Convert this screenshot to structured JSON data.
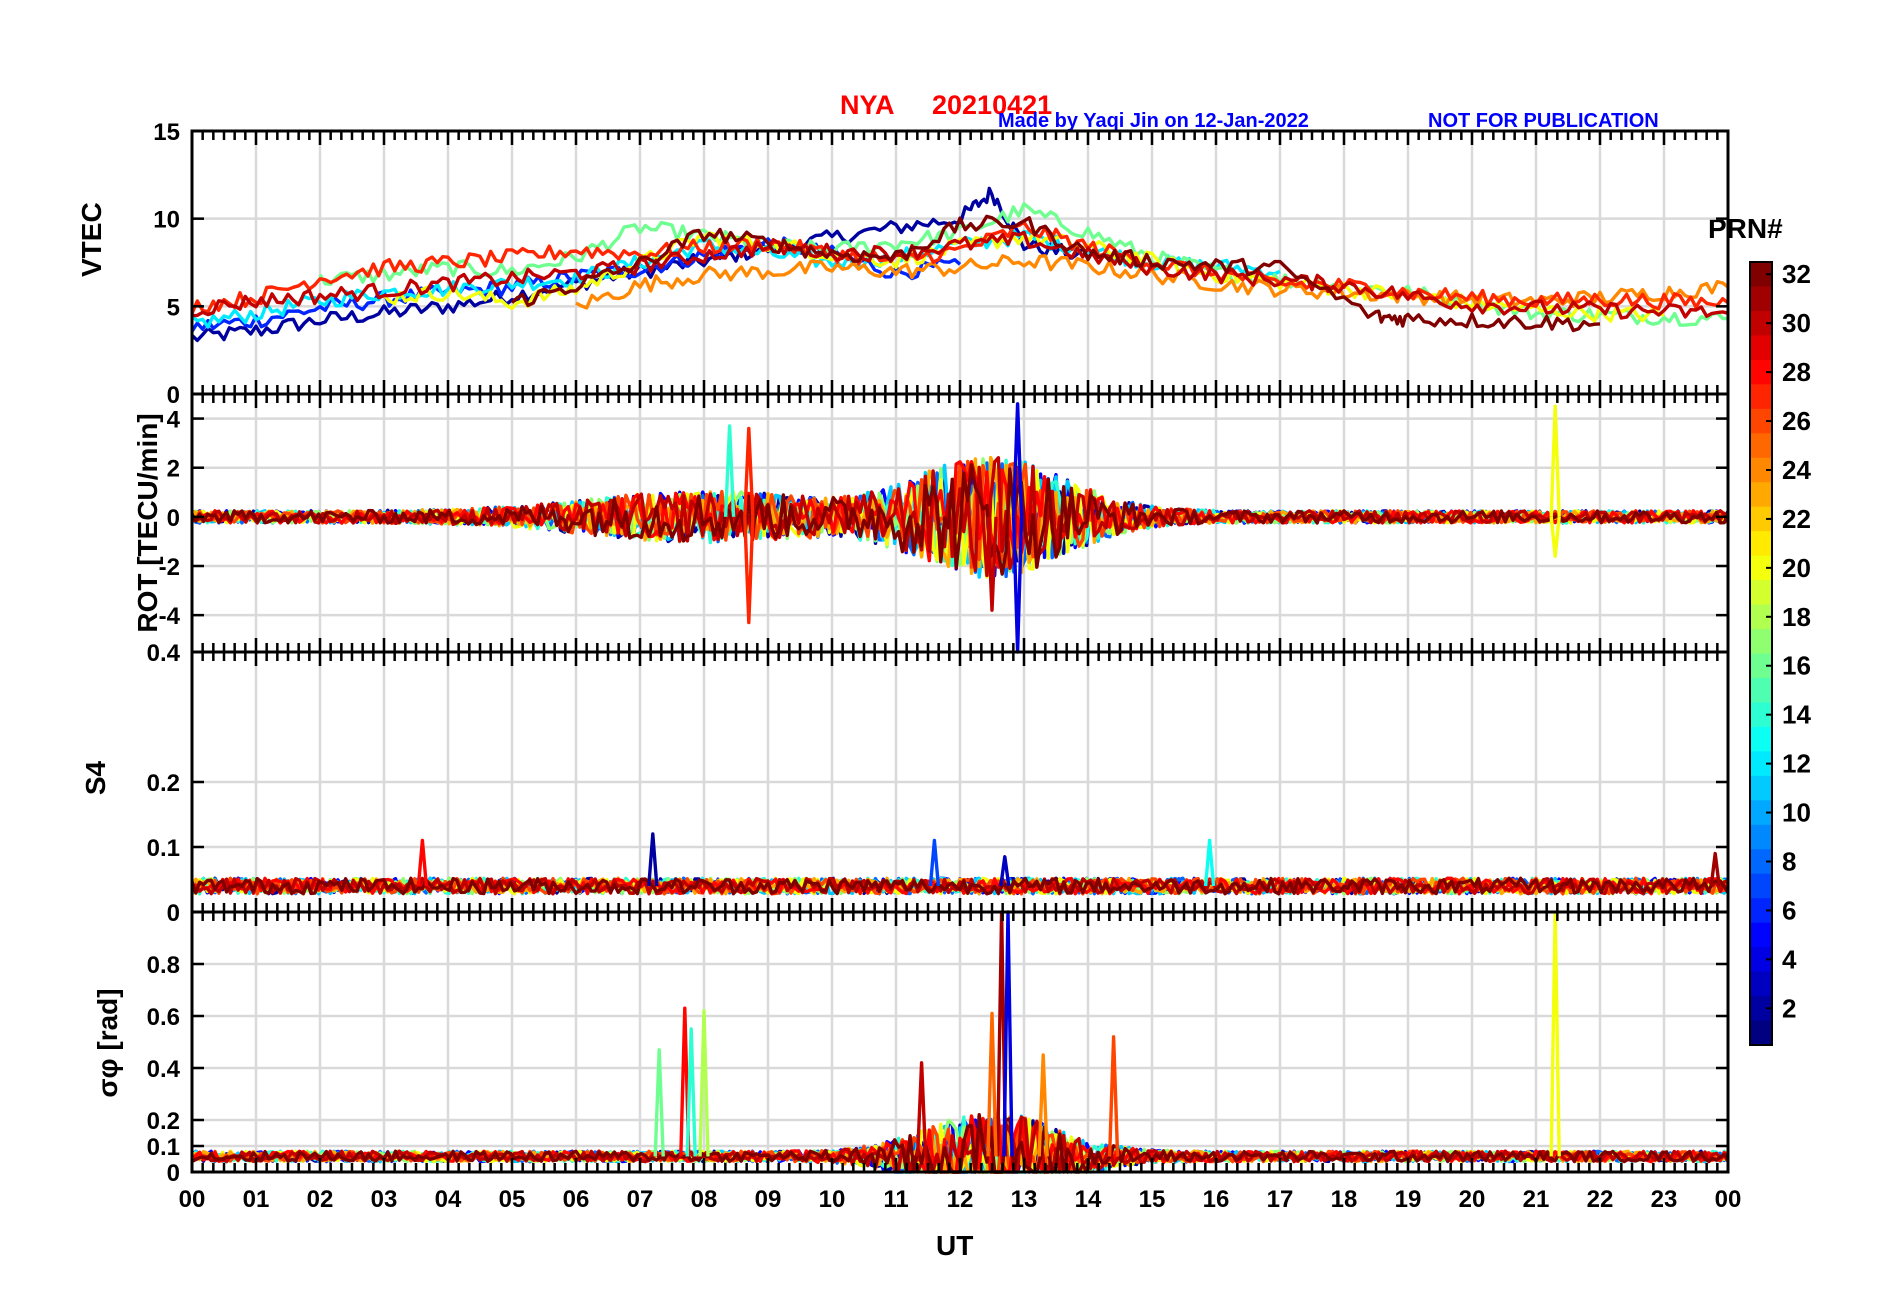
{
  "figure": {
    "station": "NYA",
    "date": "20210421",
    "credit": "Made by Yaqi Jin on 12-Jan-2022",
    "notice": "NOT FOR PUBLICATION",
    "xlabel": "UT",
    "colorbar_title": "PRN#",
    "colors": {
      "station": "#ff0000",
      "date": "#ff0000",
      "credit": "#0000ff",
      "notice": "#0000ff",
      "grid": "#d9d9d9",
      "axis": "#000000"
    }
  },
  "chart_data": [
    {
      "type": "line",
      "panel": "VTEC",
      "ylabel": "VTEC",
      "ylim": [
        0,
        15
      ],
      "yticks": [
        0,
        5,
        10,
        15
      ],
      "ytick_labels": [
        "0",
        "5",
        "10",
        "15"
      ],
      "xlim": [
        0,
        24
      ],
      "series_note": "GNSS satellites PRN 1-32, colored by PRN",
      "series": [
        {
          "prn": 2,
          "x": [
            0,
            1,
            2,
            3,
            4,
            5,
            6,
            7,
            8,
            9,
            10,
            11,
            12,
            12.5,
            13,
            14
          ],
          "y": [
            3.2,
            3.6,
            4.2,
            4.6,
            5.0,
            5.6,
            6.3,
            7.0,
            7.6,
            8.3,
            8.9,
            9.5,
            10.0,
            11.5,
            8.5,
            7.8
          ]
        },
        {
          "prn": 6,
          "x": [
            0,
            1,
            2,
            3,
            4,
            5,
            6,
            7,
            8,
            9,
            10,
            11,
            12
          ],
          "y": [
            3.8,
            4.2,
            4.9,
            5.4,
            5.8,
            6.1,
            6.7,
            7.1,
            7.9,
            8.6,
            8.0,
            6.9,
            7.4
          ]
        },
        {
          "prn": 12,
          "x": [
            0,
            1,
            2,
            3,
            4,
            5,
            6,
            7,
            8,
            9,
            10,
            11,
            12,
            13,
            14,
            15,
            16,
            17
          ],
          "y": [
            4.0,
            4.6,
            5.3,
            5.8,
            6.0,
            6.3,
            6.6,
            7.5,
            8.5,
            8.0,
            7.5,
            7.8,
            8.5,
            9.0,
            8.2,
            7.5,
            7.3,
            7.0
          ]
        },
        {
          "prn": 16,
          "x": [
            2,
            3,
            4,
            5,
            6,
            7,
            8,
            9,
            10,
            11,
            12,
            13,
            14,
            15,
            16,
            17,
            18,
            19,
            20,
            21,
            22,
            23,
            24
          ],
          "y": [
            6.5,
            6.8,
            7.2,
            7.0,
            7.8,
            9.5,
            9.0,
            8.5,
            8.2,
            8.6,
            9.2,
            10.5,
            9.2,
            7.8,
            7.0,
            6.5,
            6.2,
            5.8,
            5.2,
            4.6,
            4.5,
            4.4,
            4.3
          ]
        },
        {
          "prn": 20,
          "x": [
            3,
            4,
            5,
            6,
            7,
            8,
            9,
            10,
            11,
            12,
            13,
            14,
            15,
            16,
            17,
            18,
            19,
            20,
            21,
            22,
            23
          ],
          "y": [
            5.5,
            5.8,
            5.2,
            6.0,
            7.5,
            9.0,
            8.6,
            8.0,
            7.6,
            8.4,
            9.0,
            8.4,
            7.6,
            6.8,
            6.4,
            6.0,
            5.6,
            5.2,
            4.8,
            4.6,
            4.5
          ]
        },
        {
          "prn": 24,
          "x": [
            6,
            7,
            8,
            9,
            10,
            11,
            12,
            13,
            14,
            15,
            16,
            17,
            18,
            19,
            20,
            21,
            22,
            23,
            24
          ],
          "y": [
            5.0,
            6.2,
            6.8,
            7.0,
            7.2,
            7.0,
            7.2,
            7.6,
            7.3,
            6.8,
            6.3,
            6.0,
            5.8,
            5.6,
            5.4,
            5.3,
            5.5,
            5.8,
            6.1
          ]
        },
        {
          "prn": 27,
          "x": [
            0,
            1,
            2,
            3,
            4,
            5,
            6,
            7,
            8,
            9,
            10,
            11,
            12,
            13,
            14,
            15,
            16,
            17,
            18,
            19,
            20,
            21,
            22,
            23,
            24
          ],
          "y": [
            5.0,
            5.5,
            6.6,
            7.2,
            7.5,
            7.8,
            8.2,
            8.0,
            8.4,
            8.6,
            8.0,
            7.6,
            8.2,
            9.5,
            8.4,
            7.5,
            6.9,
            6.3,
            6.2,
            5.8,
            5.5,
            5.3,
            5.4,
            5.3,
            5.2
          ]
        },
        {
          "prn": 30,
          "x": [
            0,
            1,
            2,
            3,
            4,
            5,
            6,
            7,
            8,
            9,
            10,
            11,
            12,
            13,
            14,
            15,
            16,
            17,
            18,
            19,
            20,
            21,
            22,
            23,
            24
          ],
          "y": [
            4.8,
            5.3,
            5.6,
            5.9,
            6.3,
            6.6,
            6.9,
            7.3,
            7.9,
            8.4,
            8.1,
            8.0,
            8.5,
            8.8,
            7.9,
            7.2,
            6.8,
            6.5,
            6.2,
            5.6,
            5.1,
            4.9,
            4.8,
            4.7,
            4.6
          ]
        },
        {
          "prn": 32,
          "x": [
            5,
            6,
            7,
            8,
            9,
            10,
            11,
            12,
            13,
            14,
            15,
            16,
            17,
            18.5,
            19,
            20,
            21,
            22
          ],
          "y": [
            5.2,
            6.2,
            7.4,
            9.2,
            8.6,
            8.0,
            7.8,
            9.6,
            9.8,
            8.0,
            7.6,
            7.3,
            7.2,
            4.4,
            4.3,
            4.2,
            4.1,
            4.0
          ]
        }
      ]
    },
    {
      "type": "line",
      "panel": "ROT",
      "ylabel": "ROT [TECU/min]",
      "ylim": [
        -5.5,
        5
      ],
      "yticks": [
        -4,
        -2,
        0,
        2,
        4
      ],
      "ytick_labels": [
        "-4",
        "-2",
        "0",
        "2",
        "4"
      ],
      "xlim": [
        0,
        24
      ],
      "notable_spikes": [
        {
          "prn": 4,
          "x": 12.9,
          "y": 4.6
        },
        {
          "prn": 4,
          "x": 12.9,
          "y": -5.5
        },
        {
          "prn": 27,
          "x": 8.7,
          "y": 3.6
        },
        {
          "prn": 27,
          "x": 8.7,
          "y": -4.3
        },
        {
          "prn": 20,
          "x": 21.3,
          "y": 4.5
        },
        {
          "prn": 20,
          "x": 21.3,
          "y": -1.6
        },
        {
          "prn": 14,
          "x": 8.4,
          "y": 3.7
        },
        {
          "prn": 30,
          "x": 12.5,
          "y": -3.8
        }
      ]
    },
    {
      "type": "line",
      "panel": "S4",
      "ylabel": "S4",
      "ylim": [
        0,
        0.4
      ],
      "yticks": [
        0,
        0.1,
        0.2,
        0.4
      ],
      "ytick_labels": [
        "0",
        "0.1",
        "0.2",
        "0.4"
      ],
      "xlim": [
        0,
        24
      ],
      "baseline_range": [
        0.03,
        0.05
      ],
      "notable_peaks": [
        {
          "prn": 2,
          "x": 7.2,
          "y": 0.12
        },
        {
          "prn": 28,
          "x": 3.6,
          "y": 0.11
        },
        {
          "prn": 7,
          "x": 11.6,
          "y": 0.11
        },
        {
          "prn": 13,
          "x": 15.9,
          "y": 0.11
        },
        {
          "prn": 31,
          "x": 23.8,
          "y": 0.09
        },
        {
          "prn": 3,
          "x": 12.7,
          "y": 0.085
        }
      ]
    },
    {
      "type": "line",
      "panel": "SigmaPhi",
      "ylabel": "σφ [rad]",
      "ylim": [
        0,
        1
      ],
      "yticks": [
        0,
        0.1,
        0.2,
        0.4,
        0.6,
        0.8
      ],
      "ytick_labels": [
        "0",
        "0.1",
        "0.2",
        "0.4",
        "0.6",
        "0.8"
      ],
      "xlim": [
        0,
        24
      ],
      "xticks": [
        0,
        1,
        2,
        3,
        4,
        5,
        6,
        7,
        8,
        9,
        10,
        11,
        12,
        13,
        14,
        15,
        16,
        17,
        18,
        19,
        20,
        21,
        22,
        23,
        24
      ],
      "xtick_labels": [
        "00",
        "01",
        "02",
        "03",
        "04",
        "05",
        "06",
        "07",
        "08",
        "09",
        "10",
        "11",
        "12",
        "13",
        "14",
        "15",
        "16",
        "17",
        "18",
        "19",
        "20",
        "21",
        "22",
        "23",
        "00"
      ],
      "baseline_range": [
        0.04,
        0.08
      ],
      "notable_peaks": [
        {
          "prn": 31,
          "x": 12.65,
          "y": 1.0
        },
        {
          "prn": 4,
          "x": 12.75,
          "y": 1.0
        },
        {
          "prn": 20,
          "x": 21.3,
          "y": 1.0
        },
        {
          "prn": 28,
          "x": 7.7,
          "y": 0.63
        },
        {
          "prn": 18,
          "x": 8.0,
          "y": 0.62
        },
        {
          "prn": 25,
          "x": 12.5,
          "y": 0.61
        },
        {
          "prn": 26,
          "x": 14.4,
          "y": 0.52
        },
        {
          "prn": 16,
          "x": 7.3,
          "y": 0.47
        },
        {
          "prn": 14,
          "x": 7.8,
          "y": 0.55
        },
        {
          "prn": 30,
          "x": 11.4,
          "y": 0.42
        },
        {
          "prn": 24,
          "x": 13.3,
          "y": 0.45
        }
      ]
    },
    {
      "type": "colorbar",
      "title": "PRN#",
      "range": [
        1,
        32
      ],
      "ticks": [
        2,
        4,
        6,
        8,
        10,
        12,
        14,
        16,
        18,
        20,
        22,
        24,
        26,
        28,
        30,
        32
      ],
      "tick_labels": [
        "2",
        "4",
        "6",
        "8",
        "10",
        "12",
        "14",
        "16",
        "18",
        "20",
        "22",
        "24",
        "26",
        "28",
        "30",
        "32"
      ],
      "colormap": "jet"
    }
  ]
}
